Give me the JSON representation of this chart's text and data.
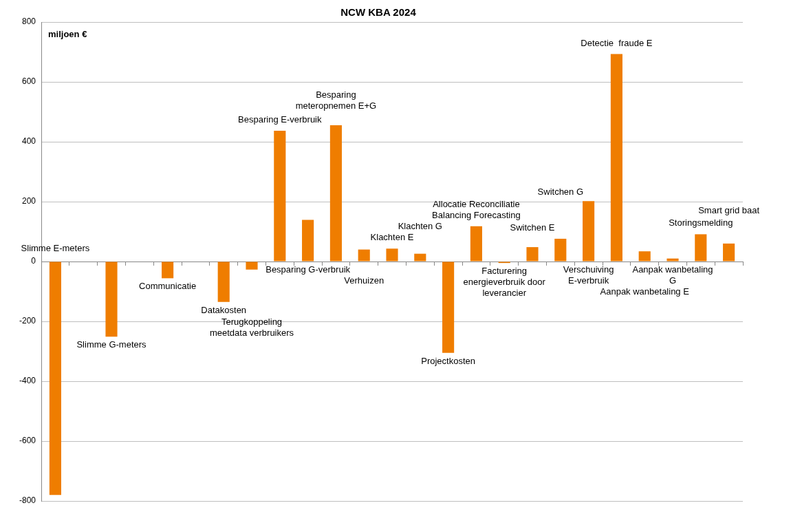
{
  "chart_data": {
    "type": "bar",
    "title": "NCW KBA 2024",
    "ylabel": "miljoen €",
    "categories": [
      "Slimme E-meters",
      null,
      "Slimme G-meters",
      null,
      "Communicatie",
      null,
      "Datakosten",
      "Terugkoppeling meetdata verbruikers",
      "Besparing E-verbruik",
      "Besparing G-verbruik",
      "Besparing meteropnemen E+G",
      "Verhuizen",
      "Klachten E",
      "Klachten G",
      "Projectkosten",
      "Allocatie Reconciliatie Balancing Forecasting",
      "Facturering energieverbruik door leverancier",
      "Switchen E",
      "Switchen G",
      "Verschuiving E-verbruik",
      "Detectie  fraude E",
      "Aanpak wanbetaling E",
      "Aanpak wanbetaling G",
      "Storingsmelding",
      "Smart grid baat"
    ],
    "values": [
      -780,
      null,
      -251,
      null,
      -56,
      null,
      -135,
      -27,
      437,
      139,
      455,
      40,
      43,
      26,
      -305,
      118,
      -5,
      48,
      76,
      202,
      693,
      34,
      10,
      91,
      60
    ],
    "color": "#ef7d00",
    "ylim": [
      -800,
      800
    ],
    "yticks": [
      -800,
      -600,
      -400,
      -200,
      0,
      200,
      400,
      600,
      800
    ],
    "grid": "y",
    "legend": false
  }
}
